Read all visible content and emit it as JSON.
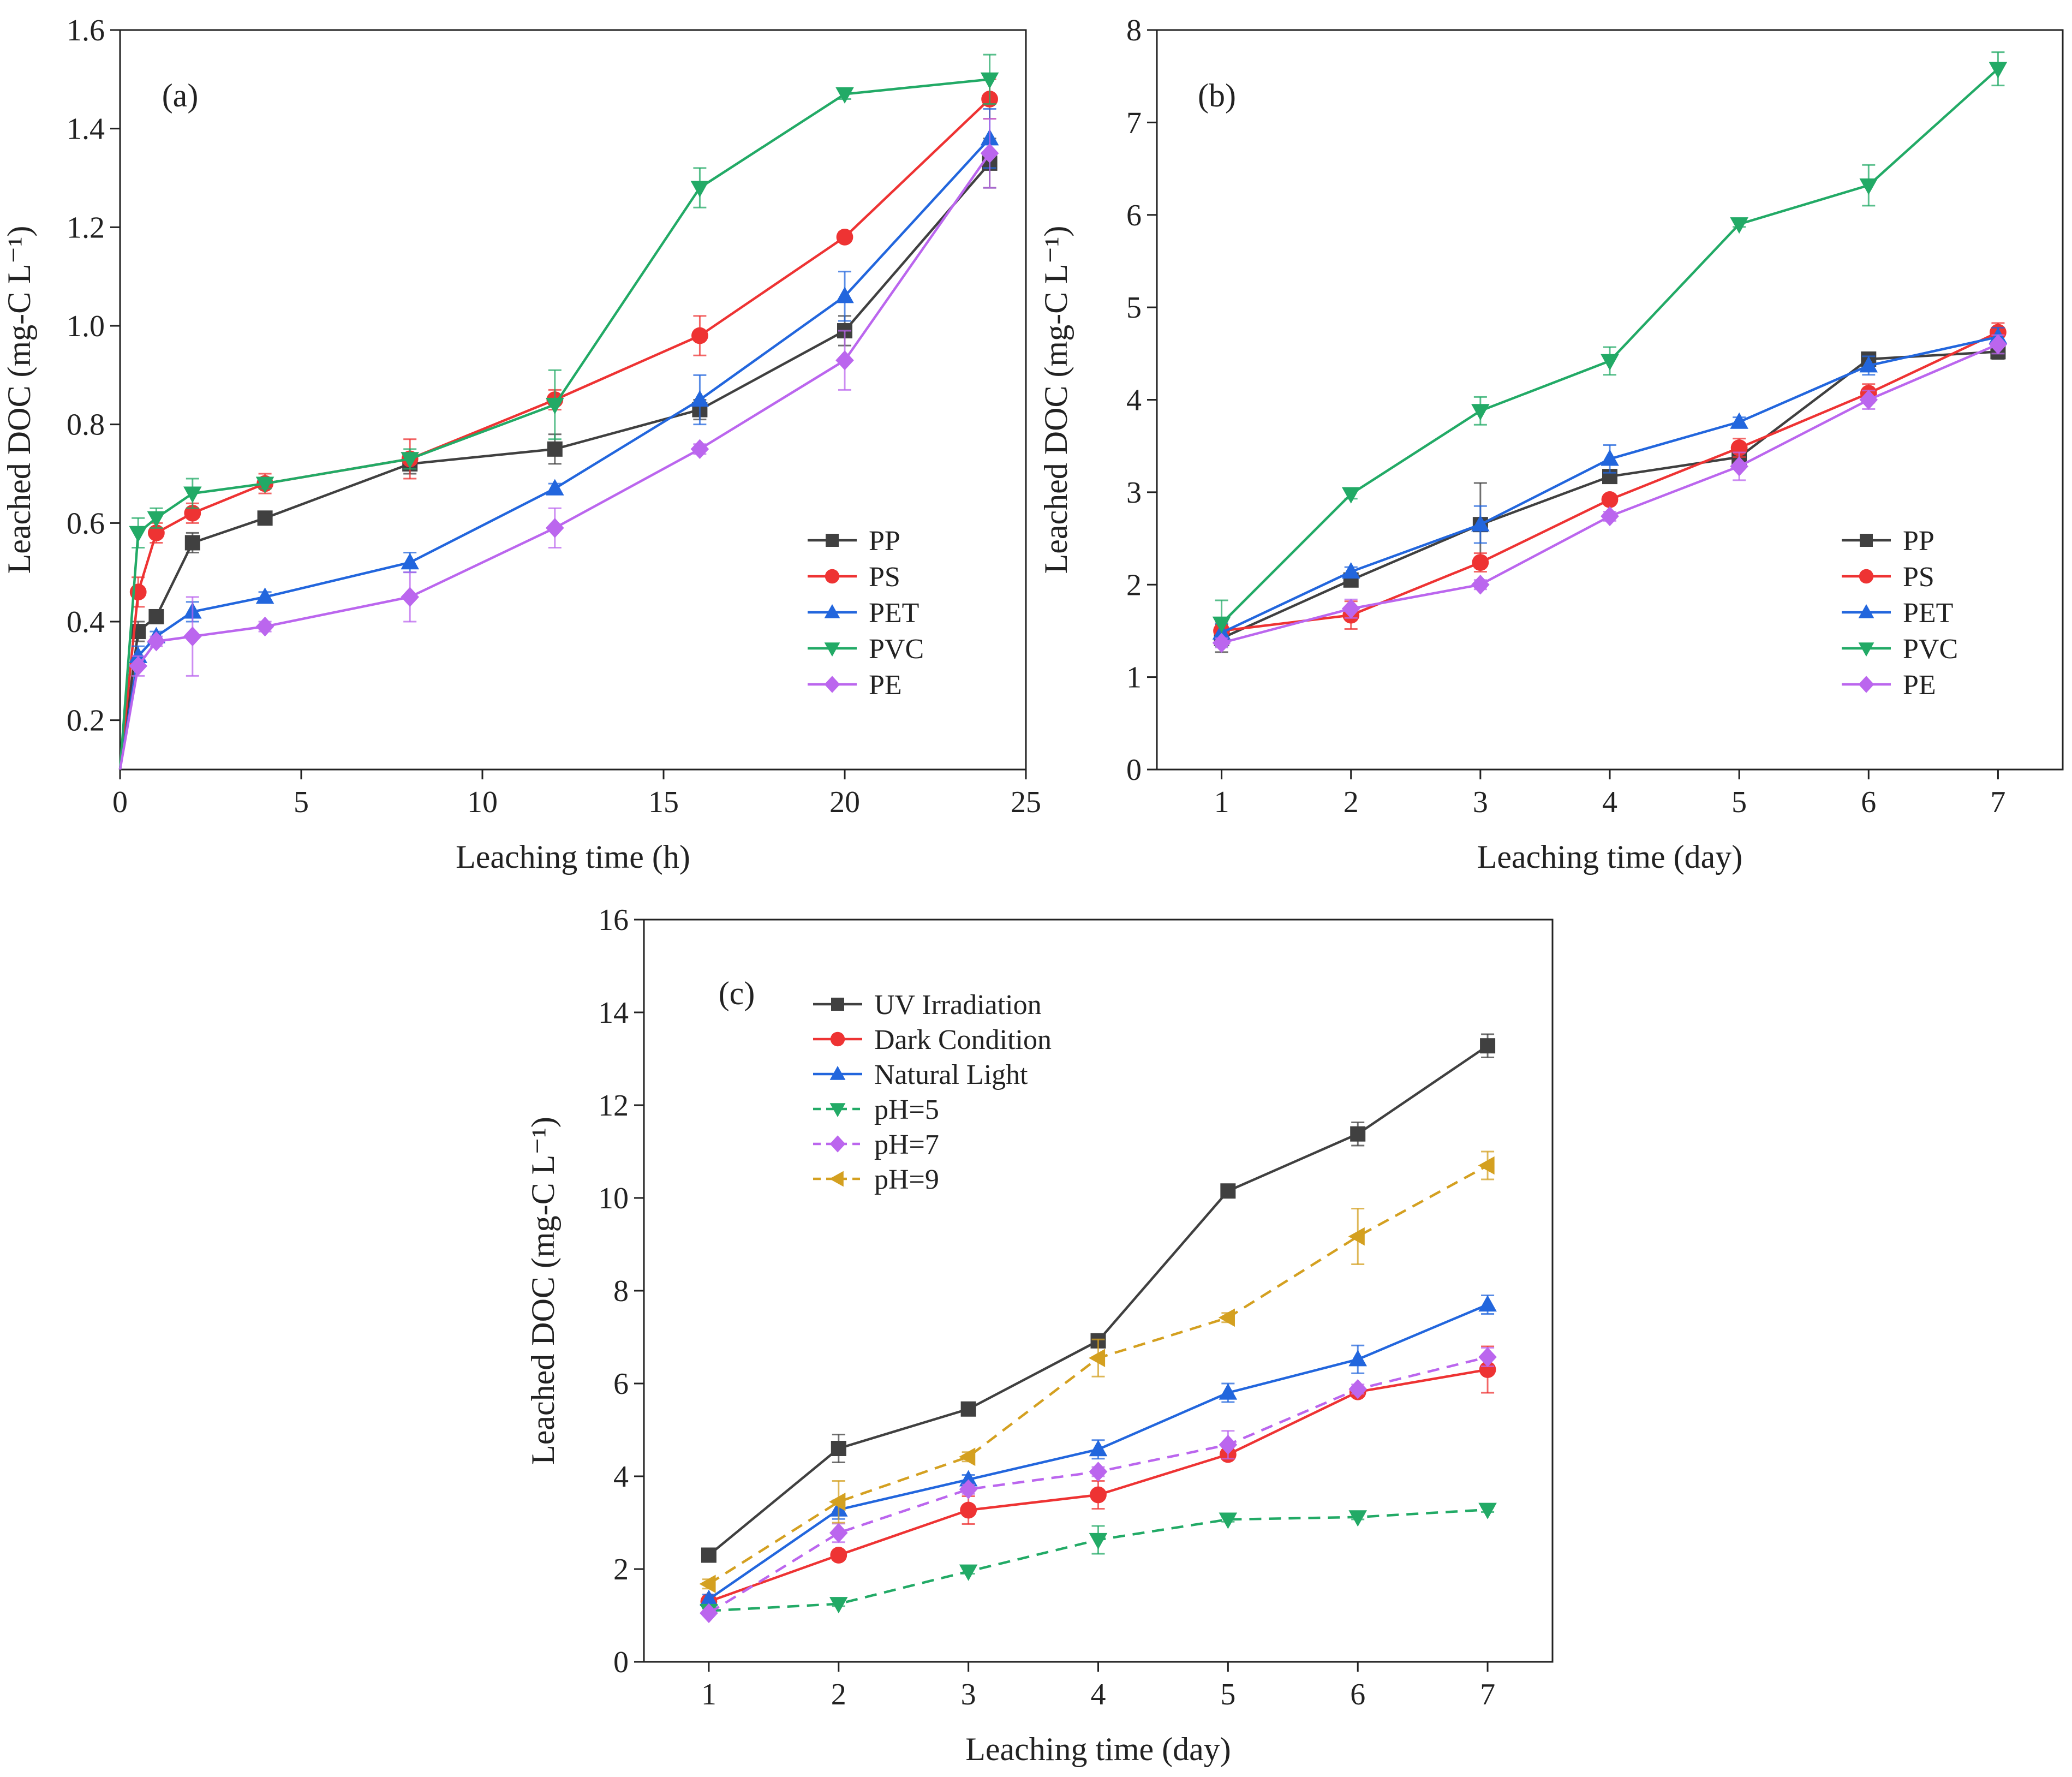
{
  "chart_data": [
    {
      "type": "line",
      "panel_label": "(a)",
      "xlabel": "Leaching time (h)",
      "ylabel": "Leached DOC (mg-C L⁻¹)",
      "xlim": [
        0,
        25
      ],
      "ylim": [
        0.1,
        1.6
      ],
      "xticks": [
        0,
        5,
        10,
        15,
        20,
        25
      ],
      "xtick_labels": [
        "0",
        "5",
        "10",
        "15",
        "20",
        "25"
      ],
      "yticks": [
        0.2,
        0.4,
        0.6,
        0.8,
        1.0,
        1.2,
        1.4,
        1.6
      ],
      "ytick_labels": [
        "0.2",
        "0.4",
        "0.6",
        "0.8",
        "1.0",
        "1.2",
        "1.4",
        "1.6"
      ],
      "legend_position": "lower-right",
      "series": [
        {
          "name": "PP",
          "color": "#404040",
          "marker": "square",
          "dashed": false,
          "x": [
            0,
            0.5,
            1,
            2,
            4,
            8,
            12,
            16,
            20,
            24
          ],
          "values": [
            0.1,
            0.38,
            0.41,
            0.56,
            0.61,
            0.72,
            0.75,
            0.83,
            0.99,
            1.33
          ],
          "errors": [
            0,
            0.02,
            0.01,
            0.02,
            0.01,
            0.02,
            0.03,
            0.02,
            0.03,
            0.05
          ]
        },
        {
          "name": "PS",
          "color": "#ee3333",
          "marker": "circle",
          "dashed": false,
          "x": [
            0,
            0.5,
            1,
            2,
            4,
            8,
            12,
            16,
            20,
            24
          ],
          "values": [
            0.1,
            0.46,
            0.58,
            0.62,
            0.68,
            0.73,
            0.85,
            0.98,
            1.18,
            1.46
          ],
          "errors": [
            0,
            0.03,
            0.02,
            0.02,
            0.02,
            0.04,
            0.02,
            0.04,
            0.01,
            0.04
          ]
        },
        {
          "name": "PET",
          "color": "#2266dd",
          "marker": "triangle-up",
          "dashed": false,
          "x": [
            0,
            0.5,
            1,
            2,
            4,
            8,
            12,
            16,
            20,
            24
          ],
          "values": [
            0.1,
            0.33,
            0.37,
            0.42,
            0.45,
            0.52,
            0.67,
            0.85,
            1.06,
            1.38
          ],
          "errors": [
            0,
            0.02,
            0.01,
            0.02,
            0.01,
            0.02,
            0.01,
            0.05,
            0.05,
            0.06
          ]
        },
        {
          "name": "PVC",
          "color": "#22aa66",
          "marker": "triangle-down",
          "dashed": false,
          "x": [
            0,
            0.5,
            1,
            2,
            4,
            8,
            12,
            16,
            20,
            24
          ],
          "values": [
            0.1,
            0.58,
            0.61,
            0.66,
            0.68,
            0.73,
            0.84,
            1.28,
            1.47,
            1.5
          ],
          "errors": [
            0,
            0.03,
            0.02,
            0.03,
            0.01,
            0.02,
            0.07,
            0.04,
            0.01,
            0.05
          ]
        },
        {
          "name": "PE",
          "color": "#bb66ee",
          "marker": "diamond",
          "dashed": false,
          "x": [
            0,
            0.5,
            1,
            2,
            4,
            8,
            12,
            16,
            20,
            24
          ],
          "values": [
            0.1,
            0.31,
            0.36,
            0.37,
            0.39,
            0.45,
            0.59,
            0.75,
            0.93,
            1.35
          ],
          "errors": [
            0,
            0.02,
            0.01,
            0.08,
            0.01,
            0.05,
            0.04,
            0.01,
            0.06,
            0.07
          ]
        }
      ]
    },
    {
      "type": "line",
      "panel_label": "(b)",
      "xlabel": "Leaching time (day)",
      "ylabel": "Leached DOC (mg-C L⁻¹)",
      "xlim": [
        0.5,
        7.5
      ],
      "ylim": [
        0,
        8
      ],
      "xticks": [
        1,
        2,
        3,
        4,
        5,
        6,
        7
      ],
      "xtick_labels": [
        "1",
        "2",
        "3",
        "4",
        "5",
        "6",
        "7"
      ],
      "yticks": [
        0,
        1,
        2,
        3,
        4,
        5,
        6,
        7,
        8
      ],
      "ytick_labels": [
        "0",
        "1",
        "2",
        "3",
        "4",
        "5",
        "6",
        "7",
        "8"
      ],
      "legend_position": "lower-right",
      "series": [
        {
          "name": "PP",
          "color": "#404040",
          "marker": "square",
          "dashed": false,
          "x": [
            1,
            2,
            3,
            4,
            5,
            6,
            7
          ],
          "values": [
            1.42,
            2.05,
            2.65,
            3.17,
            3.38,
            4.44,
            4.52
          ],
          "errors": [
            0.15,
            0.05,
            0.45,
            0.05,
            0.08,
            0.05,
            0.08
          ]
        },
        {
          "name": "PS",
          "color": "#ee3333",
          "marker": "circle",
          "dashed": false,
          "x": [
            1,
            2,
            3,
            4,
            5,
            6,
            7
          ],
          "values": [
            1.5,
            1.67,
            2.24,
            2.92,
            3.48,
            4.07,
            4.73
          ],
          "errors": [
            0.1,
            0.15,
            0.1,
            0.05,
            0.1,
            0.1,
            0.1
          ]
        },
        {
          "name": "PET",
          "color": "#2266dd",
          "marker": "triangle-up",
          "dashed": false,
          "x": [
            1,
            2,
            3,
            4,
            5,
            6,
            7
          ],
          "values": [
            1.48,
            2.14,
            2.65,
            3.36,
            3.76,
            4.37,
            4.68
          ],
          "errors": [
            0.1,
            0.05,
            0.2,
            0.15,
            0.05,
            0.1,
            0.1
          ]
        },
        {
          "name": "PVC",
          "color": "#22aa66",
          "marker": "triangle-down",
          "dashed": false,
          "x": [
            1,
            2,
            3,
            4,
            5,
            6,
            7
          ],
          "values": [
            1.58,
            2.98,
            3.88,
            4.42,
            5.9,
            6.32,
            7.58
          ],
          "errors": [
            0.25,
            0.05,
            0.15,
            0.15,
            0.03,
            0.22,
            0.18
          ]
        },
        {
          "name": "PE",
          "color": "#bb66ee",
          "marker": "diamond",
          "dashed": false,
          "x": [
            1,
            2,
            3,
            4,
            5,
            6,
            7
          ],
          "values": [
            1.37,
            1.74,
            2.0,
            2.74,
            3.28,
            4.0,
            4.6
          ],
          "errors": [
            0.05,
            0.1,
            0.05,
            0.05,
            0.15,
            0.1,
            0.1
          ]
        }
      ]
    },
    {
      "type": "line",
      "panel_label": "(c)",
      "xlabel": "Leaching time (day)",
      "ylabel": "Leached DOC (mg-C L⁻¹)",
      "xlim": [
        0.5,
        7.5
      ],
      "ylim": [
        0,
        16
      ],
      "xticks": [
        1,
        2,
        3,
        4,
        5,
        6,
        7
      ],
      "xtick_labels": [
        "1",
        "2",
        "3",
        "4",
        "5",
        "6",
        "7"
      ],
      "yticks": [
        0,
        2,
        4,
        6,
        8,
        10,
        12,
        14,
        16
      ],
      "ytick_labels": [
        "0",
        "2",
        "4",
        "6",
        "8",
        "10",
        "12",
        "14",
        "16"
      ],
      "legend_position": "top-left",
      "series": [
        {
          "name": "UV Irradiation",
          "color": "#404040",
          "marker": "square",
          "dashed": false,
          "x": [
            1,
            2,
            3,
            4,
            5,
            6,
            7
          ],
          "values": [
            2.3,
            4.6,
            5.45,
            6.92,
            10.15,
            11.38,
            13.28
          ],
          "errors": [
            0.1,
            0.3,
            0.1,
            0.1,
            0.1,
            0.25,
            0.25
          ]
        },
        {
          "name": "Dark Condition",
          "color": "#ee3333",
          "marker": "circle",
          "dashed": false,
          "x": [
            1,
            2,
            3,
            4,
            5,
            6,
            7
          ],
          "values": [
            1.3,
            2.3,
            3.27,
            3.6,
            4.47,
            5.82,
            6.3
          ],
          "errors": [
            0.1,
            0.1,
            0.3,
            0.3,
            0.1,
            0.1,
            0.5
          ]
        },
        {
          "name": "Natural Light",
          "color": "#2266dd",
          "marker": "triangle-up",
          "dashed": false,
          "x": [
            1,
            2,
            3,
            4,
            5,
            6,
            7
          ],
          "values": [
            1.35,
            3.28,
            3.93,
            4.58,
            5.8,
            6.52,
            7.7
          ],
          "errors": [
            0.1,
            0.2,
            0.1,
            0.2,
            0.2,
            0.3,
            0.2
          ]
        },
        {
          "name": "pH=5",
          "color": "#22aa66",
          "marker": "triangle-down",
          "dashed": true,
          "x": [
            1,
            2,
            3,
            4,
            5,
            6,
            7
          ],
          "values": [
            1.1,
            1.25,
            1.95,
            2.63,
            3.07,
            3.12,
            3.28
          ],
          "errors": [
            0.05,
            0.05,
            0.05,
            0.3,
            0.05,
            0.05,
            0.05
          ]
        },
        {
          "name": "pH=7",
          "color": "#bb66ee",
          "marker": "diamond",
          "dashed": true,
          "x": [
            1,
            2,
            3,
            4,
            5,
            6,
            7
          ],
          "values": [
            1.05,
            2.78,
            3.72,
            4.1,
            4.68,
            5.88,
            6.57
          ],
          "errors": [
            0.05,
            0.2,
            0.1,
            0.1,
            0.3,
            0.1,
            0.2
          ]
        },
        {
          "name": "pH=9",
          "color": "#d4a020",
          "marker": "triangle-left",
          "dashed": true,
          "x": [
            1,
            2,
            3,
            4,
            5,
            6,
            7
          ],
          "values": [
            1.68,
            3.45,
            4.42,
            6.55,
            7.42,
            9.17,
            10.7
          ],
          "errors": [
            0.1,
            0.45,
            0.1,
            0.4,
            0.1,
            0.6,
            0.3
          ]
        }
      ]
    }
  ]
}
